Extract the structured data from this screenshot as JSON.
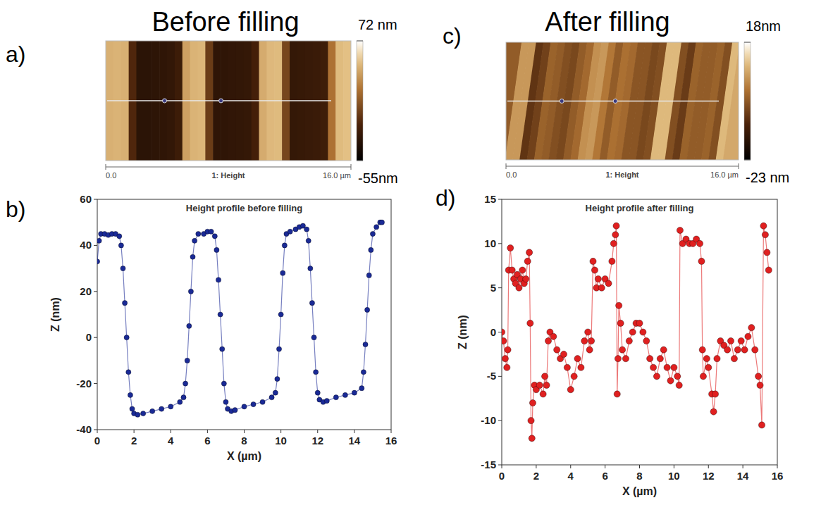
{
  "chart_data": [
    {
      "type": "heatmap",
      "panel_label": "a)",
      "title": "Before filling",
      "xlabel": "1: Height",
      "xlim": [
        0,
        16
      ],
      "xticks": [
        {
          "value": 0,
          "label": "0.0"
        },
        {
          "value": 16,
          "label": "16.0 µm"
        }
      ],
      "cells": [
        44,
        45,
        44,
        -15,
        -33,
        -33,
        -32,
        -31,
        -29,
        -24,
        38,
        45,
        46,
        -5,
        -31,
        -31,
        -30,
        -29,
        -28,
        -20,
        42,
        47,
        48,
        0,
        -28,
        -27,
        -26,
        -25,
        -23,
        20,
        48,
        50
      ],
      "colorbar_range": [
        -55,
        72
      ],
      "colorbar_ticks": [
        {
          "value": 72,
          "label": "72 nm"
        },
        {
          "value": -55,
          "label": "-55nm"
        }
      ]
    },
    {
      "type": "heatmap",
      "panel_label": "c)",
      "title": "After filling",
      "xlabel": "1: Height",
      "xlim": [
        0,
        16
      ],
      "xticks": [
        {
          "value": 0,
          "label": "0.0"
        },
        {
          "value": 16,
          "label": "16.0 µm"
        }
      ],
      "cells": [
        -2,
        6,
        6,
        -8,
        -6,
        -1,
        -2,
        -4,
        -5,
        -2,
        0,
        5,
        6,
        2,
        -2,
        1,
        0,
        -3,
        -3,
        -5,
        -4,
        10,
        10,
        -4,
        -7,
        -1,
        -2,
        -2,
        -1,
        -4,
        10,
        8
      ],
      "colorbar_range": [
        -23,
        18
      ],
      "colorbar_ticks": [
        {
          "value": 18,
          "label": "18nm"
        },
        {
          "value": -23,
          "label": "-23 nm"
        }
      ]
    },
    {
      "type": "line",
      "panel_label": "b)",
      "title": "Height profile before filling",
      "xlabel": "X (µm)",
      "ylabel": "Z (nm)",
      "color": "#1a2a96",
      "marker": "circle",
      "x": [
        0,
        0.1,
        0.2,
        0.4,
        0.6,
        0.8,
        1.0,
        1.2,
        1.3,
        1.4,
        1.5,
        1.6,
        1.7,
        1.8,
        1.9,
        2.0,
        2.2,
        2.5,
        3.0,
        3.5,
        4.0,
        4.5,
        4.7,
        4.8,
        4.9,
        5.0,
        5.1,
        5.2,
        5.3,
        5.5,
        5.8,
        6.0,
        6.2,
        6.4,
        6.5,
        6.6,
        6.7,
        6.8,
        6.9,
        7.0,
        7.1,
        7.3,
        7.5,
        8.0,
        8.5,
        9.0,
        9.5,
        9.7,
        9.8,
        9.9,
        10.0,
        10.1,
        10.2,
        10.3,
        10.5,
        10.8,
        11.0,
        11.2,
        11.4,
        11.5,
        11.6,
        11.7,
        11.8,
        11.9,
        12.0,
        12.1,
        12.3,
        12.5,
        13.0,
        13.5,
        14.0,
        14.4,
        14.5,
        14.6,
        14.7,
        14.8,
        14.9,
        15.0,
        15.2,
        15.4,
        15.5
      ],
      "values": [
        33,
        42,
        45,
        45,
        44.5,
        45,
        45,
        44,
        40,
        30,
        15,
        0,
        -15,
        -25,
        -31,
        -33,
        -33.5,
        -33,
        -32,
        -31,
        -30,
        -28,
        -26,
        -20,
        -10,
        5,
        20,
        35,
        42,
        45,
        45,
        46,
        46,
        44,
        38,
        25,
        10,
        -5,
        -20,
        -28,
        -31,
        -32,
        -31.5,
        -30,
        -29,
        -28,
        -26,
        -24,
        -18,
        -5,
        10,
        28,
        40,
        45,
        46,
        47,
        48,
        48.5,
        47,
        42,
        30,
        15,
        0,
        -15,
        -24,
        -27,
        -28,
        -27.5,
        -26,
        -25,
        -24,
        -22,
        -15,
        -3,
        12,
        27,
        38,
        45,
        48,
        50,
        50
      ],
      "xlim": [
        0,
        16
      ],
      "xticks": [
        0,
        2,
        4,
        6,
        8,
        10,
        12,
        14,
        16
      ],
      "ylim": [
        -40,
        60
      ],
      "yticks": [
        -40,
        -20,
        0,
        20,
        40,
        60
      ]
    },
    {
      "type": "line",
      "panel_label": "d)",
      "title": "Height profile after filling",
      "xlabel": "X (µm)",
      "ylabel": "Z (nm)",
      "color": "#e02020",
      "marker": "circle",
      "x": [
        0,
        0.1,
        0.2,
        0.3,
        0.35,
        0.4,
        0.5,
        0.6,
        0.7,
        0.8,
        0.9,
        1.0,
        1.1,
        1.2,
        1.3,
        1.4,
        1.5,
        1.6,
        1.65,
        1.7,
        1.75,
        1.8,
        1.9,
        2.0,
        2.2,
        2.4,
        2.5,
        2.6,
        2.7,
        2.8,
        3.0,
        3.2,
        3.4,
        3.6,
        3.8,
        4.0,
        4.2,
        4.4,
        4.6,
        4.8,
        5.0,
        5.1,
        5.2,
        5.3,
        5.4,
        5.5,
        5.6,
        5.8,
        6.0,
        6.2,
        6.4,
        6.5,
        6.6,
        6.65,
        6.7,
        6.75,
        6.8,
        6.9,
        7.0,
        7.2,
        7.4,
        7.6,
        7.8,
        8.0,
        8.2,
        8.4,
        8.6,
        8.8,
        9.0,
        9.2,
        9.4,
        9.6,
        9.8,
        10.0,
        10.2,
        10.3,
        10.35,
        10.5,
        10.7,
        10.9,
        11.1,
        11.3,
        11.5,
        11.6,
        11.65,
        11.7,
        11.9,
        12.0,
        12.2,
        12.3,
        12.4,
        12.5,
        12.7,
        12.9,
        13.1,
        13.3,
        13.5,
        13.7,
        13.9,
        14.1,
        14.3,
        14.5,
        14.7,
        14.9,
        15.0,
        15.1,
        15.2,
        15.3,
        15.4,
        15.5
      ],
      "values": [
        0,
        -1,
        -3,
        -4,
        -2,
        7,
        9.5,
        7,
        6,
        5.5,
        6.5,
        5,
        6,
        7,
        5.5,
        6,
        8,
        9,
        1,
        -10,
        -12,
        -8,
        -6,
        -6.5,
        -6,
        -7,
        -5,
        -6,
        -1,
        0,
        -0.5,
        -2,
        -3,
        -2.5,
        -4,
        -6.5,
        -5,
        -3,
        -4,
        -1,
        0,
        -2,
        -1,
        8,
        7,
        5,
        6,
        5,
        6,
        5.5,
        8,
        10,
        11,
        12,
        -7,
        -3,
        3,
        1,
        -2,
        -3,
        -1,
        0,
        1,
        1,
        0,
        -1,
        -3,
        -4,
        -5,
        -3,
        -2,
        -4,
        -5.5,
        -4,
        -5,
        -6,
        11.5,
        10,
        10.5,
        10,
        10,
        10.5,
        10,
        8,
        -2,
        -5,
        -3,
        -4,
        -7,
        -9,
        -7,
        -3,
        -1,
        -1.5,
        -2,
        -1,
        -3,
        -2,
        -1,
        -2,
        -0.5,
        0.5,
        -2,
        -5,
        -6,
        -10.5,
        12,
        11,
        9,
        7
      ],
      "xlim": [
        0,
        16
      ],
      "xticks": [
        0,
        2,
        4,
        6,
        8,
        10,
        12,
        14,
        16
      ],
      "ylim": [
        -15,
        15
      ],
      "yticks": [
        -15,
        -10,
        -5,
        0,
        5,
        10,
        15
      ]
    }
  ]
}
